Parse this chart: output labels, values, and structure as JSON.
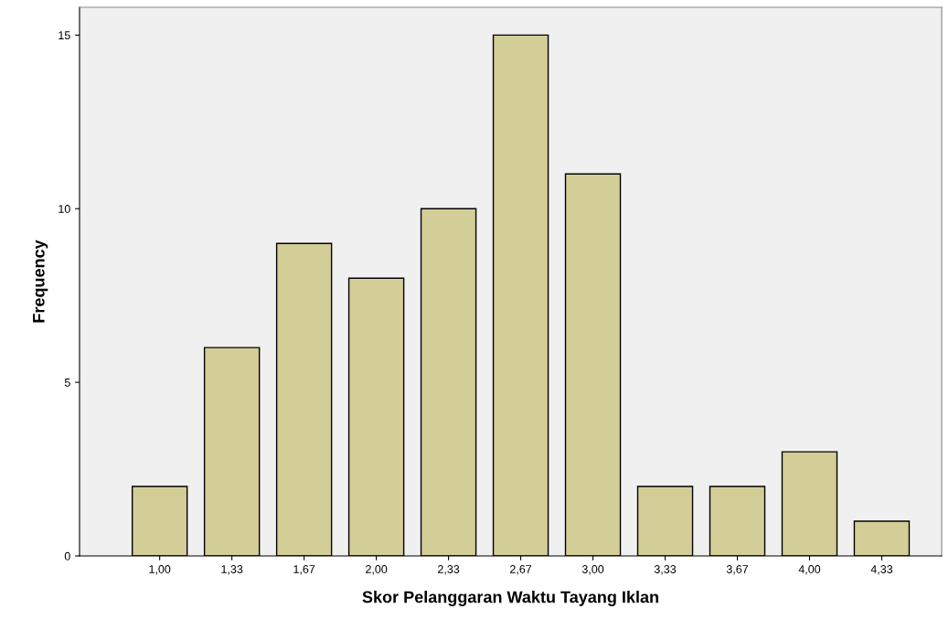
{
  "chart_data": {
    "type": "bar",
    "xlabel": "Skor Pelanggaran Waktu Tayang Iklan",
    "ylabel": "Frequency",
    "categories": [
      "1,00",
      "1,33",
      "1,67",
      "2,00",
      "2,33",
      "2,67",
      "3,00",
      "3,33",
      "3,67",
      "4,00",
      "4,33"
    ],
    "values": [
      2,
      6,
      9,
      8,
      10,
      15,
      11,
      2,
      2,
      3,
      1
    ],
    "color": "#d3ce97",
    "ylim": [
      0,
      15.8
    ],
    "yticks": [
      0,
      5,
      10,
      15
    ],
    "grid": false,
    "legend": false
  }
}
